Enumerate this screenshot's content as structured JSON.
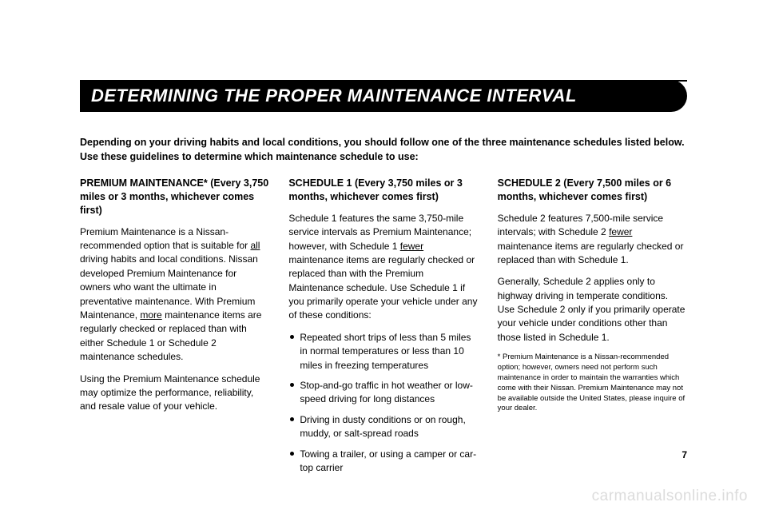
{
  "header": {
    "title": "DETERMINING THE PROPER MAINTENANCE INTERVAL"
  },
  "intro": "Depending on your driving habits and local conditions, you should follow one of the three maintenance schedules listed below. Use these guidelines to determine which maintenance schedule to use:",
  "col1": {
    "heading": "PREMIUM MAINTENANCE* (Every 3,750 miles or 3 months, whichever comes first)",
    "p1a": "Premium Maintenance is a Nissan-recommended option that is suitable for ",
    "p1u1": "all",
    "p1b": " driving habits and local conditions.  Nissan developed Premium Maintenance for owners who want the ultimate in preventative maintenance.  With Premium Maintenance, ",
    "p1u2": "more",
    "p1c": " maintenance items are regularly checked or replaced than with either Schedule 1 or Schedule 2 maintenance schedules.",
    "p2": "Using the Premium Maintenance schedule may optimize the performance, reliability, and resale value of your vehicle."
  },
  "col2": {
    "heading": "SCHEDULE 1 (Every 3,750 miles or 3 months, whichever comes first)",
    "p1a": "Schedule 1 features the same 3,750-mile service intervals as Premium Maintenance; however, with Schedule 1 ",
    "p1u1": "fewer",
    "p1b": " maintenance items are regularly checked or replaced than with the Premium Maintenance schedule.  Use Schedule 1 if you primarily operate your vehicle under any of these conditions:",
    "b1": "Repeated short trips of less than 5 miles in normal temperatures or less than 10 miles in freezing temperatures",
    "b2": "Stop-and-go traffic in hot weather or low-speed driving for long distances",
    "b3": "Driving in dusty conditions or on rough, muddy, or salt-spread roads",
    "b4": "Towing a trailer, or using a camper or car-top carrier"
  },
  "col3": {
    "heading": "SCHEDULE 2 (Every 7,500 miles or 6 months, whichever comes first)",
    "p1a": "Schedule 2 features 7,500-mile service intervals; with Schedule 2 ",
    "p1u1": "fewer",
    "p1b": " maintenance items are regularly checked or replaced than with Schedule 1.",
    "p2": "Generally, Schedule 2 applies only to highway driving in temperate conditions.  Use Schedule 2 only if you primarily operate your vehicle under conditions other than those listed in Schedule 1.",
    "footnote": "* Premium Maintenance is a Nissan-recommended option; however, owners need not perform such maintenance in order to maintain the warranties which come with their Nissan.\nPremium Maintenance may not be available outside the United States, please inquire of your dealer."
  },
  "page_number": "7",
  "watermark": "carmanualsonline.info"
}
